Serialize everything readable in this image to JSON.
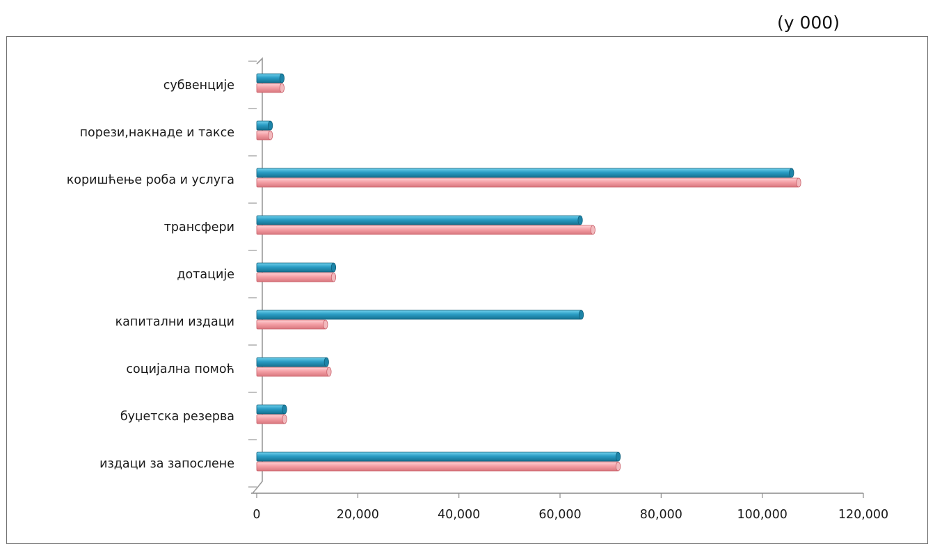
{
  "chart_data": {
    "type": "bar",
    "orientation": "horizontal",
    "unit_note": "(у 000)",
    "categories": [
      "издаци за запослене",
      "буџетска резерва",
      "социјална помоћ",
      "капитални издаци",
      "дотације",
      "трансфери",
      "коришћење роба и услуга",
      "порези,накнаде и таксе",
      "субвенције"
    ],
    "series": [
      {
        "color": "#2a9cc4",
        "values": [
          71500,
          5500,
          13800,
          64200,
          15200,
          64000,
          105800,
          2700,
          5000
        ]
      },
      {
        "color": "#f4a0a6",
        "values": [
          71500,
          5500,
          14300,
          13600,
          15200,
          66500,
          107200,
          2700,
          5000
        ]
      }
    ],
    "xlim": [
      0,
      120000
    ],
    "xticks": [
      "0",
      "20,000",
      "40,000",
      "60,000",
      "80,000",
      "100,000",
      "120,000"
    ],
    "grid": false,
    "legend": "none"
  }
}
